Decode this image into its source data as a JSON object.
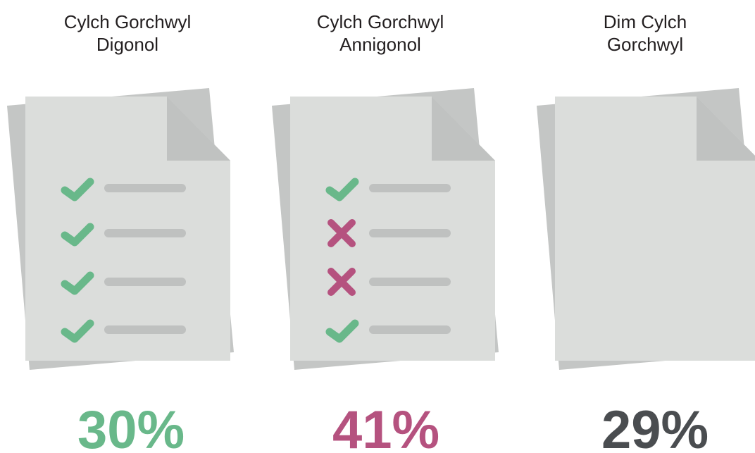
{
  "items": [
    {
      "label": [
        "Cylch Gorchwyl",
        "Digonol"
      ],
      "value": "30%"
    },
    {
      "label": [
        "Cylch Gorchwyl",
        "Annigonol"
      ],
      "value": "41%"
    },
    {
      "label": [
        "Dim Cylch",
        "Gorchwyl"
      ],
      "value": "29%"
    }
  ]
}
